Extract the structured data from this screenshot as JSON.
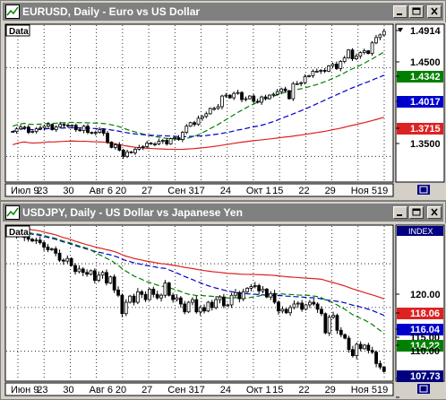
{
  "windows": [
    {
      "title": "EURUSD, Daily - Euro vs US Dollar",
      "data_label": "Data",
      "price_labels": [
        {
          "value": "1.4914",
          "bg": "#ffffff",
          "fg": "#000000"
        },
        {
          "value": "1.4500",
          "bg": "#ffffff",
          "fg": "#000000"
        },
        {
          "value": "1.4342",
          "bg": "#008000",
          "fg": "#ffffff"
        },
        {
          "value": "1.4017",
          "bg": "#0000cc",
          "fg": "#ffffff"
        },
        {
          "value": "1.3715",
          "bg": "#dd2222",
          "fg": "#ffffff"
        },
        {
          "value": "1.3500",
          "bg": "#ffffff",
          "fg": "#000000"
        }
      ],
      "x_labels": [
        "Июл 9",
        "23",
        "30",
        "Авг 6",
        "20",
        "27",
        "Сен 3",
        "17",
        "24",
        "Окт 1",
        "15",
        "22",
        "29",
        "Ноя 5",
        "19"
      ]
    },
    {
      "title": "USDJPY, Daily - US Dollar vs Japanese Yen",
      "data_label": "Data",
      "index_label": "INDEX",
      "price_labels": [
        {
          "value": "120.00",
          "bg": "#ffffff",
          "fg": "#000000"
        },
        {
          "value": "118.06",
          "bg": "#dd2222",
          "fg": "#ffffff"
        },
        {
          "value": "116.04",
          "bg": "#0000cc",
          "fg": "#ffffff"
        },
        {
          "value": "115.00",
          "bg": "#ffffff",
          "fg": "#000000"
        },
        {
          "value": "114.22",
          "bg": "#008000",
          "fg": "#ffffff"
        },
        {
          "value": "110.00",
          "bg": "#ffffff",
          "fg": "#000000"
        },
        {
          "value": "107.73",
          "bg": "#000080",
          "fg": "#ffffff"
        }
      ],
      "x_labels": [
        "Июн 9",
        "23",
        "30",
        "Авг 6",
        "20",
        "27",
        "Сен 3",
        "17",
        "24",
        "Окт 1",
        "15",
        "22",
        "29",
        "Ноя 5",
        "19"
      ]
    }
  ],
  "colors": {
    "ma_fast": "#008000",
    "ma_mid": "#0000cc",
    "ma_slow": "#dd2222",
    "candle_up": "#ffffff",
    "candle_down": "#000000"
  },
  "chart_data": [
    {
      "type": "candlestick",
      "title": "EURUSD, Daily - Euro vs US Dollar",
      "y_ticks": [
        "1.4500",
        "1.3500"
      ],
      "last_price": "1.4914",
      "indicators": [
        {
          "name": "",
          "last": "1.4342",
          "color": "#008000",
          "style": "dashed"
        },
        {
          "name": "",
          "last": "1.4017",
          "color": "#0000cc",
          "style": "dashed"
        },
        {
          "name": "",
          "last": "1.3715",
          "color": "#dd2222",
          "style": "solid"
        }
      ],
      "ylim": [
        1.325,
        1.495
      ],
      "close": [
        1.378,
        1.381,
        1.383,
        1.383,
        1.377,
        1.378,
        1.381,
        1.382,
        1.384,
        1.386,
        1.38,
        1.383,
        1.386,
        1.385,
        1.384,
        1.385,
        1.38,
        1.379,
        1.384,
        1.377,
        1.376,
        1.377,
        1.38,
        1.376,
        1.366,
        1.36,
        1.363,
        1.357,
        1.35,
        1.355,
        1.354,
        1.358,
        1.36,
        1.361,
        1.365,
        1.364,
        1.364,
        1.367,
        1.368,
        1.364,
        1.37,
        1.371,
        1.369,
        1.377,
        1.384,
        1.388,
        1.386,
        1.393,
        1.395,
        1.398,
        1.404,
        1.404,
        1.406,
        1.418,
        1.419,
        1.416,
        1.421,
        1.422,
        1.414,
        1.415,
        1.418,
        1.412,
        1.411,
        1.417,
        1.415,
        1.419,
        1.42,
        1.423,
        1.426,
        1.424,
        1.415,
        1.432,
        1.432,
        1.433,
        1.44,
        1.441,
        1.446,
        1.446,
        1.447,
        1.446,
        1.452,
        1.454,
        1.449,
        1.457,
        1.461,
        1.47,
        1.46,
        1.463,
        1.467,
        1.469,
        1.466,
        1.478,
        1.484,
        1.487,
        1.491
      ]
    },
    {
      "type": "candlestick",
      "title": "USDJPY, Daily - US Dollar vs Japanese Yen",
      "y_ticks": [
        "120.00",
        "115.00",
        "110.00"
      ],
      "last_price": "107.73",
      "indicators": [
        {
          "name": "",
          "last": "118.06",
          "color": "#dd2222",
          "style": "solid"
        },
        {
          "name": "",
          "last": "116.04",
          "color": "#0000cc",
          "style": "dashed"
        },
        {
          "name": "",
          "last": "114.22",
          "color": "#008000",
          "style": "dashed"
        }
      ],
      "ylim": [
        107.0,
        124.0
      ],
      "close": [
        123.2,
        123.5,
        123.3,
        123.0,
        122.8,
        122.6,
        122.7,
        122.4,
        121.9,
        121.6,
        121.7,
        121.2,
        120.4,
        120.3,
        120.6,
        119.8,
        119.1,
        119.4,
        119.0,
        118.8,
        119.2,
        118.1,
        118.7,
        119.0,
        117.8,
        118.5,
        117.0,
        116.4,
        114.3,
        115.6,
        116.3,
        115.6,
        116.8,
        116.5,
        115.9,
        117.1,
        116.5,
        116.1,
        116.4,
        117.8,
        116.4,
        115.9,
        116.1,
        115.4,
        114.5,
        115.6,
        115.9,
        114.5,
        115.0,
        114.6,
        115.6,
        115.0,
        115.9,
        116.2,
        115.2,
        115.3,
        116.4,
        116.7,
        116.0,
        116.8,
        117.2,
        117.4,
        117.5,
        116.9,
        117.1,
        116.2,
        116.6,
        115.6,
        114.6,
        114.8,
        114.4,
        115.0,
        115.4,
        115.5,
        114.8,
        115.3,
        115.6,
        115.4,
        114.8,
        114.3,
        112.1,
        113.9,
        114.1,
        112.4,
        111.9,
        111.5,
        110.2,
        109.5,
        110.8,
        110.3,
        110.7,
        110.1,
        109.9,
        108.6,
        108.2,
        107.7
      ]
    }
  ]
}
